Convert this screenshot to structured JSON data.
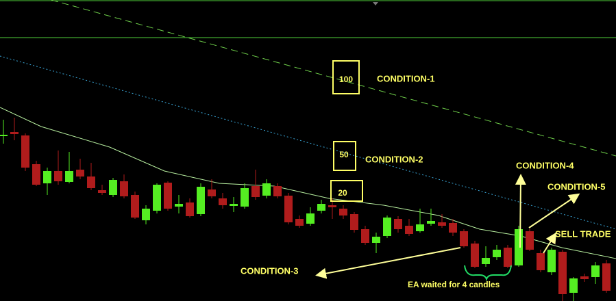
{
  "chart_data": {
    "type": "candlestick",
    "categories": [
      null,
      null,
      null,
      null,
      null,
      null,
      null,
      null,
      null,
      null,
      null,
      null,
      null,
      null,
      null,
      null,
      null,
      null,
      null,
      null,
      null,
      null,
      null,
      null,
      null,
      null,
      null,
      null,
      null,
      null,
      null,
      null,
      null,
      null,
      null,
      null,
      null,
      null,
      null,
      null,
      null,
      null,
      null,
      null,
      null,
      null,
      null,
      null,
      null,
      null,
      null,
      null,
      null,
      null,
      null,
      null
    ],
    "open": [
      241,
      247,
      242,
      200,
      172,
      190,
      174,
      192,
      182,
      162,
      155,
      175,
      155,
      118,
      132,
      173,
      138,
      144,
      127,
      163,
      150,
      139,
      138,
      168,
      154,
      168,
      154,
      120,
      113,
      132,
      140,
      135,
      127,
      105,
      85,
      95,
      120,
      110,
      102,
      113,
      115,
      114,
      102,
      84,
      54,
      64,
      78,
      52,
      102,
      70,
      42,
      72,
      12,
      36,
      35,
      55
    ],
    "high": [
      265,
      268,
      245,
      205,
      195,
      220,
      218,
      208,
      202,
      170,
      180,
      185,
      160,
      140,
      172,
      175,
      155,
      150,
      172,
      178,
      158,
      152,
      172,
      192,
      178,
      172,
      158,
      125,
      137,
      148,
      150,
      140,
      130,
      110,
      100,
      125,
      124,
      120,
      135,
      135,
      127,
      120,
      105,
      88,
      80,
      82,
      82,
      110,
      105,
      75,
      78,
      75,
      35,
      40,
      57,
      60
    ],
    "low": [
      230,
      235,
      190,
      168,
      155,
      170,
      172,
      178,
      162,
      155,
      152,
      150,
      120,
      112,
      128,
      132,
      128,
      122,
      124,
      150,
      135,
      130,
      135,
      148,
      150,
      150,
      112,
      107,
      110,
      128,
      120,
      120,
      100,
      82,
      70,
      92,
      100,
      95,
      100,
      110,
      107,
      95,
      78,
      48,
      50,
      60,
      48,
      50,
      73,
      42,
      38,
      0,
      0,
      28,
      25,
      12
    ],
    "close": [
      243,
      244,
      195,
      170,
      190,
      175,
      190,
      182,
      165,
      158,
      177,
      153,
      122,
      135,
      170,
      135,
      142,
      124,
      167,
      153,
      140,
      142,
      165,
      152,
      172,
      153,
      115,
      110,
      128,
      142,
      137,
      125,
      104,
      85,
      94,
      122,
      105,
      98,
      112,
      117,
      110,
      100,
      80,
      50,
      63,
      75,
      50,
      105,
      75,
      45,
      75,
      10,
      33,
      32,
      52,
      15
    ],
    "up_color": "#55ee22",
    "down_color": "#b01c1c",
    "xlim": [
      -0.3125,
      55.875
    ],
    "ylim": [
      0,
      440
    ],
    "hlines": [
      439,
      385
    ],
    "hline_color": "#4fcf3a",
    "lines": [
      {
        "x": [
          4.375,
          55.875
        ],
        "values": [
          440,
          212
        ],
        "color": "#6fd04a",
        "style": "dashed"
      },
      {
        "x": [
          -0.3125,
          55.875
        ],
        "values": [
          358,
          105
        ],
        "color": "#3aa6d8",
        "style": "dotted"
      },
      {
        "x": [
          -0.3125,
          3.4375,
          9.6875,
          14.6875,
          19.6875,
          24.6875,
          29.6875,
          34.6875,
          39.6875,
          43.4375,
          47.1875,
          50.9375,
          55.875
        ],
        "values": [
          283,
          255,
          225,
          190,
          172,
          168,
          150,
          140,
          125,
          105,
          95,
          78,
          62
        ],
        "color": "#b8f0a0",
        "style": "solid"
      }
    ],
    "annotations": [
      "100",
      "50",
      "20",
      "CONDITION-1",
      "CONDITION-2",
      "CONDITION-3",
      "CONDITION-4",
      "CONDITION-5",
      "SELL TRADE",
      "EA waited for 4 candles"
    ]
  }
}
